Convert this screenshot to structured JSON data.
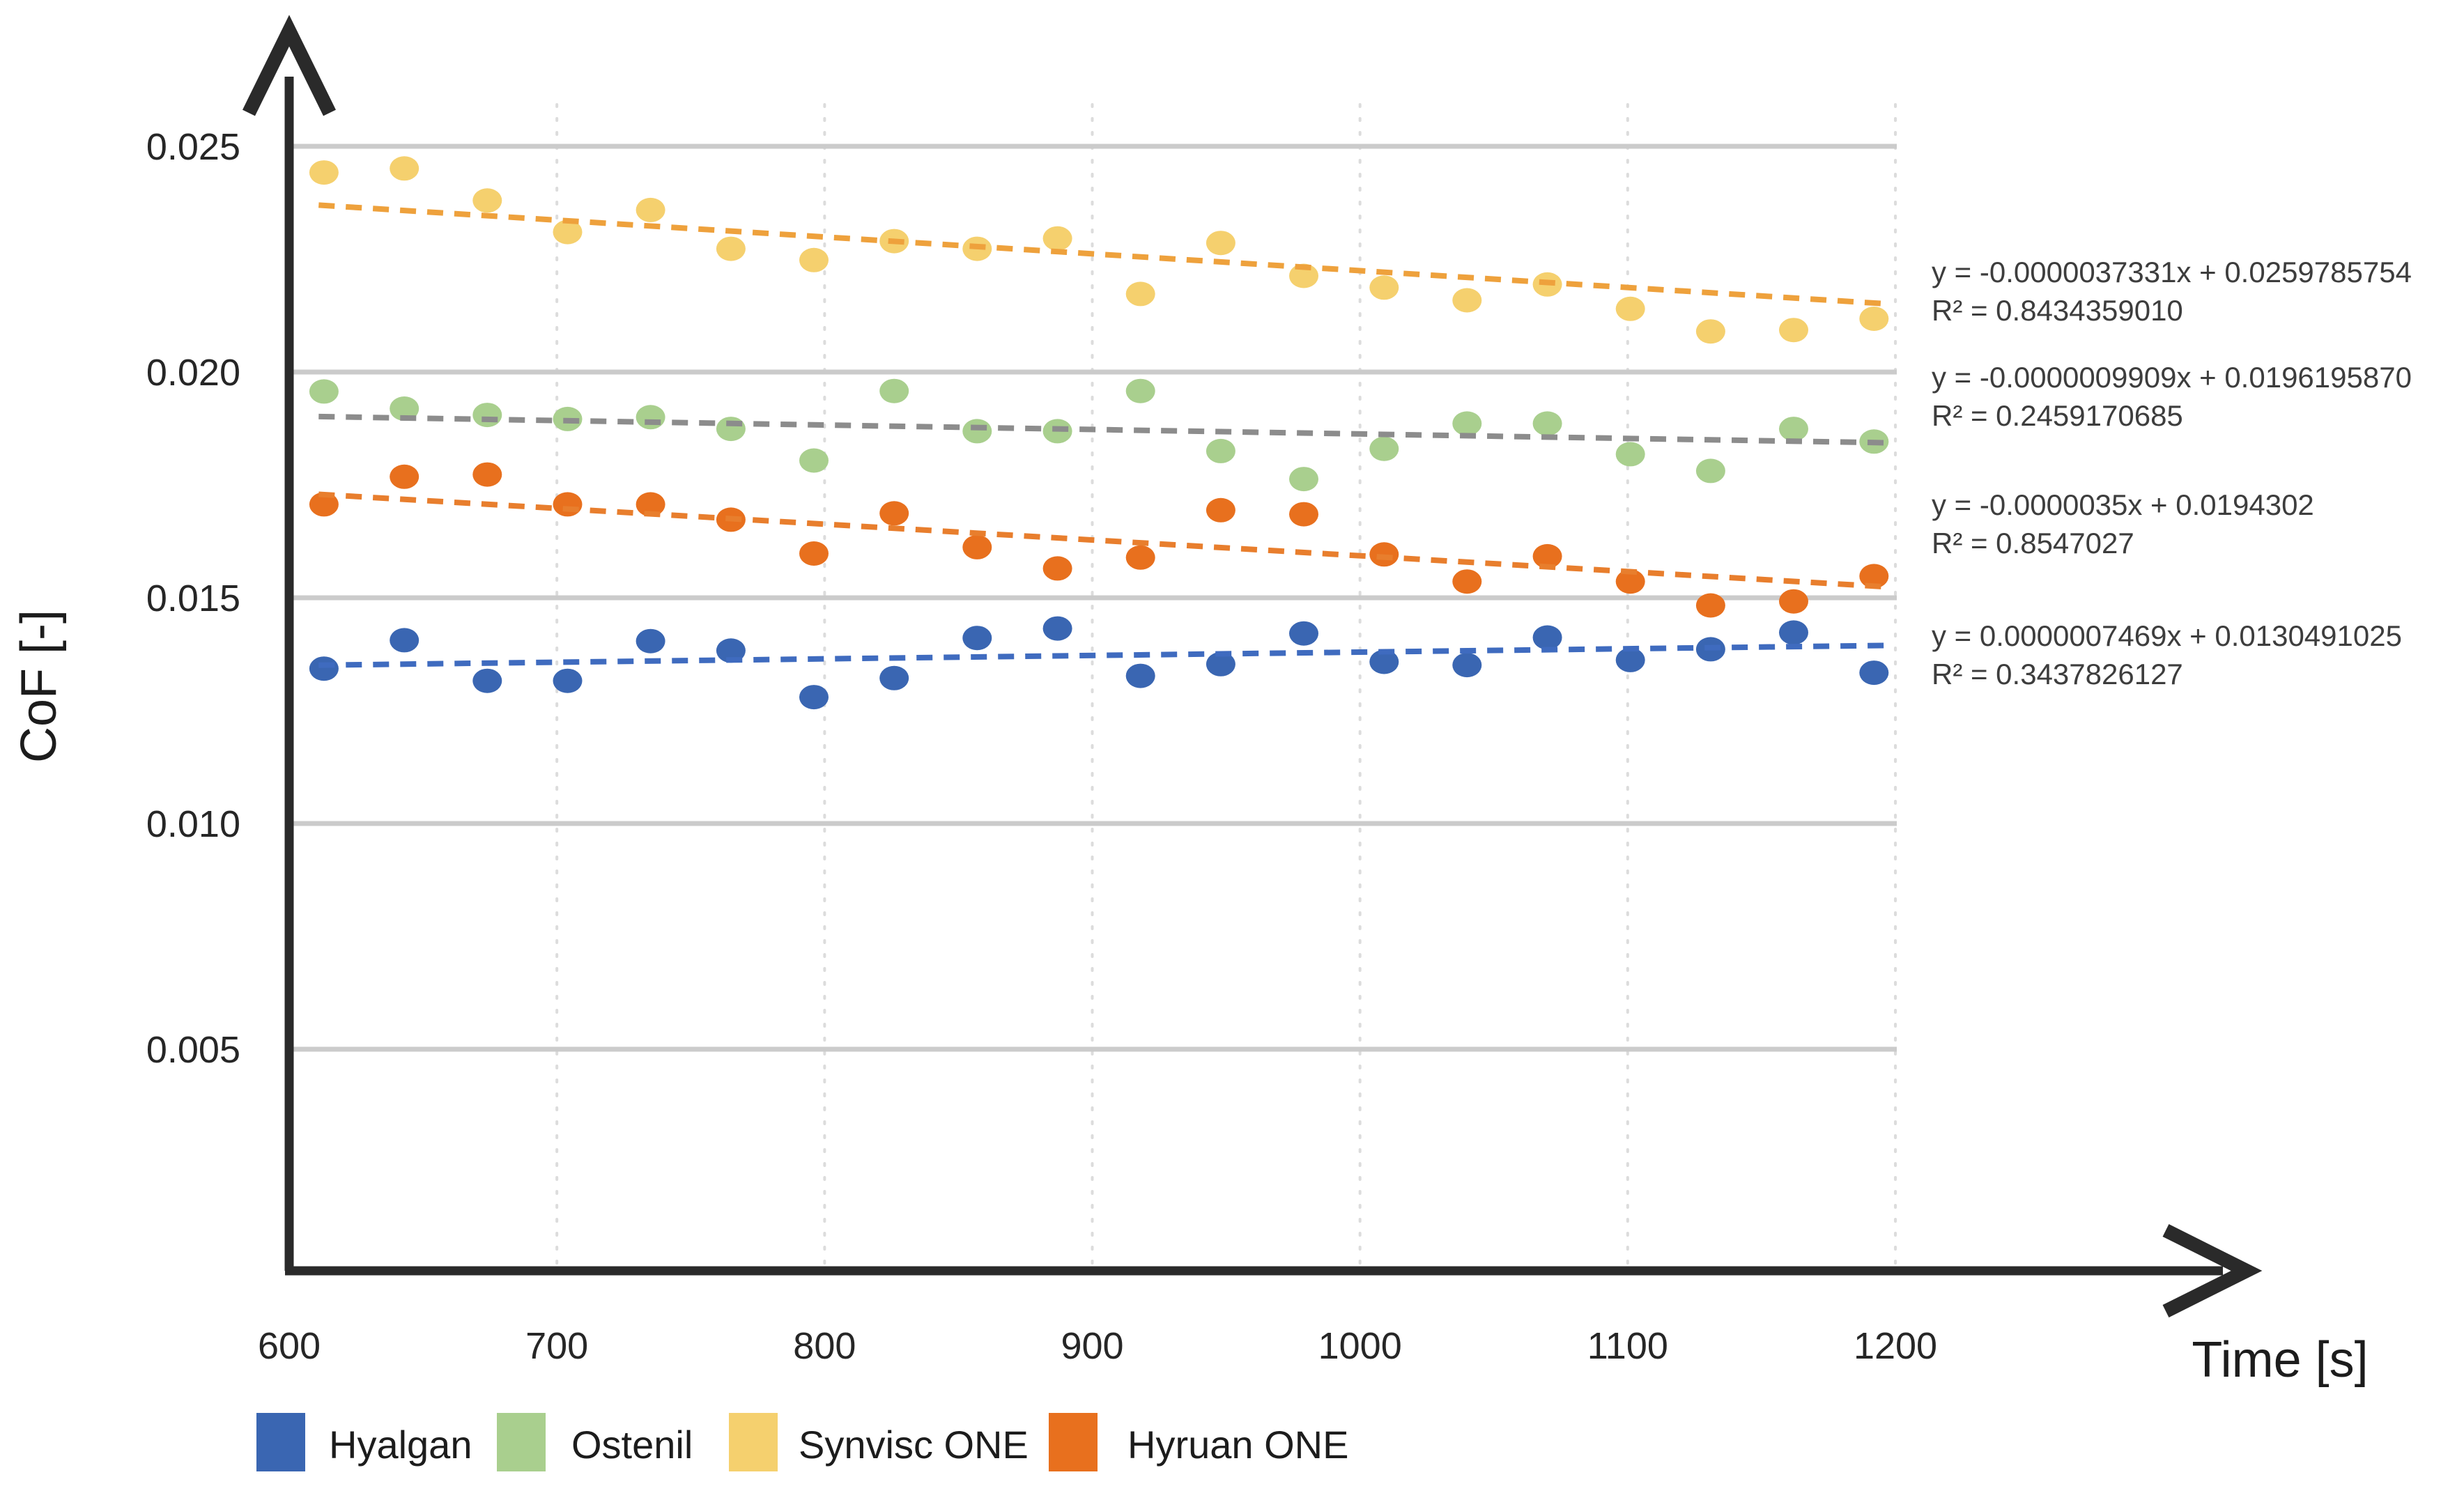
{
  "figure": {
    "background_color": "#ffffff",
    "axis_color": "#2a2a2a",
    "grid_color": "#cbcbcb",
    "minor_grid_color": "#dcdcdc",
    "equation_text_color": "#3d3d3d"
  },
  "chart_data": {
    "type": "scatter",
    "title": "",
    "xlabel": "Time [s]",
    "ylabel": "CoF [-]",
    "xlim": [
      600,
      1210
    ],
    "ylim": [
      0,
      0.0265
    ],
    "grid": "horizontal solid, vertical dotted",
    "legend_position": "bottom",
    "x_ticks": [
      600,
      700,
      800,
      900,
      1000,
      1100,
      1200
    ],
    "x_tick_labels": [
      "600",
      "700",
      "800",
      "900",
      "1000",
      "1100",
      "1200"
    ],
    "y_ticks": [
      0.005,
      0.01,
      0.015,
      0.02,
      0.025
    ],
    "y_tick_labels": [
      "0.005",
      "0.010",
      "0.015",
      "0.020",
      "0.025"
    ],
    "x": [
      613,
      643,
      674,
      704,
      735,
      765,
      796,
      826,
      857,
      887,
      918,
      948,
      979,
      1009,
      1040,
      1070,
      1101,
      1131,
      1162,
      1192
    ],
    "series": [
      {
        "name": "Hyalgan",
        "marker_color": "#3a66b2",
        "trend_color": "#3f6bbf",
        "values": [
          0.01343,
          0.01406,
          0.01316,
          0.01316,
          0.01404,
          0.01383,
          0.0128,
          0.01322,
          0.01411,
          0.01432,
          0.01327,
          0.01353,
          0.01421,
          0.01358,
          0.01351,
          0.01412,
          0.01362,
          0.01386,
          0.01423,
          0.01334
        ],
        "trend": {
          "slope": 7.469e-07,
          "intercept": 0.0130491025
        },
        "equation": "y = 0.0000007469x + 0.0130491025",
        "r_squared": "R² = 0.3437826127"
      },
      {
        "name": "Ostenil",
        "marker_color": "#a9cf8e",
        "trend_color": "#8c8c8c",
        "values": [
          0.01957,
          0.01919,
          0.01905,
          0.01896,
          0.019,
          0.01874,
          0.01804,
          0.01958,
          0.01869,
          0.01869,
          0.01958,
          0.01825,
          0.01763,
          0.0183,
          0.01886,
          0.01886,
          0.01818,
          0.01781,
          0.01874,
          0.01846
        ],
        "trend": {
          "slope": -9.909e-07,
          "intercept": 0.019619587
        },
        "equation": "y = -0.0000009909x + 0.0196195870",
        "r_squared": "R² = 0.2459170685"
      },
      {
        "name": "Synvisc ONE",
        "marker_color": "#f5d06e",
        "trend_color": "#eea13c",
        "values": [
          0.02442,
          0.02451,
          0.0238,
          0.0231,
          0.02359,
          0.02273,
          0.02248,
          0.0229,
          0.02273,
          0.02296,
          0.02173,
          0.02286,
          0.02213,
          0.02187,
          0.02159,
          0.02194,
          0.0214,
          0.0209,
          0.02093,
          0.02118
        ],
        "trend": {
          "slope": -3.7331e-06,
          "intercept": 0.0259785754
        },
        "equation": "y = -0.0000037331x + 0.0259785754",
        "r_squared": "R² = 0.8434359010"
      },
      {
        "name": "Hyruan ONE",
        "marker_color": "#e8701e",
        "trend_color": "#e87e2d",
        "values": [
          0.01707,
          0.01768,
          0.01773,
          0.01707,
          0.01707,
          0.01673,
          0.01598,
          0.01687,
          0.01612,
          0.01565,
          0.01589,
          0.01694,
          0.01685,
          0.01596,
          0.01536,
          0.01592,
          0.01536,
          0.01483,
          0.01492,
          0.01548
        ],
        "trend": {
          "slope": -3.5e-06,
          "intercept": 0.0194302
        },
        "equation": "y = -0.0000035x + 0.0194302",
        "r_squared": "R² = 0.8547027"
      }
    ],
    "equation_block_order": [
      "Synvisc ONE",
      "Ostenil",
      "Hyruan ONE",
      "Hyalgan"
    ],
    "legend_items": [
      "Hyalgan",
      "Ostenil",
      "Synvisc ONE",
      "Hyruan ONE"
    ]
  }
}
